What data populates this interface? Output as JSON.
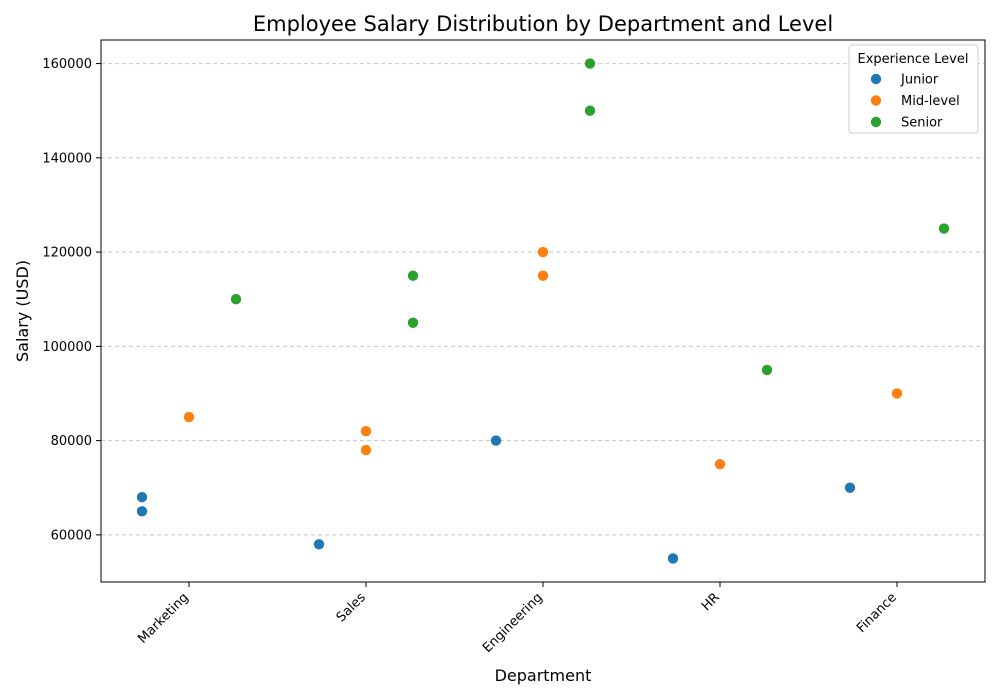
{
  "chart_data": {
    "type": "scatter",
    "title": "Employee Salary Distribution by Department and Level",
    "xlabel": "Department",
    "ylabel": "Salary (USD)",
    "categories": [
      "Marketing",
      "Sales",
      "Engineering",
      "HR",
      "Finance"
    ],
    "ylim": [
      50000,
      165000
    ],
    "yticks": [
      60000,
      80000,
      100000,
      120000,
      140000,
      160000
    ],
    "grid": "y-dashed",
    "legend": {
      "title": "Experience Level",
      "placement": "top-right"
    },
    "series": [
      {
        "name": "Junior",
        "color": "#1f77b4",
        "points": [
          {
            "category": "Marketing",
            "value": 68000
          },
          {
            "category": "Marketing",
            "value": 65000
          },
          {
            "category": "Sales",
            "value": 58000
          },
          {
            "category": "Engineering",
            "value": 80000
          },
          {
            "category": "HR",
            "value": 55000
          },
          {
            "category": "Finance",
            "value": 70000
          }
        ]
      },
      {
        "name": "Mid-level",
        "color": "#ff7f0e",
        "points": [
          {
            "category": "Marketing",
            "value": 85000
          },
          {
            "category": "Sales",
            "value": 82000
          },
          {
            "category": "Sales",
            "value": 78000
          },
          {
            "category": "Engineering",
            "value": 120000
          },
          {
            "category": "Engineering",
            "value": 115000
          },
          {
            "category": "HR",
            "value": 75000
          },
          {
            "category": "Finance",
            "value": 90000
          }
        ]
      },
      {
        "name": "Senior",
        "color": "#2ca02c",
        "points": [
          {
            "category": "Marketing",
            "value": 110000
          },
          {
            "category": "Sales",
            "value": 115000
          },
          {
            "category": "Sales",
            "value": 105000
          },
          {
            "category": "Engineering",
            "value": 160000
          },
          {
            "category": "Engineering",
            "value": 150000
          },
          {
            "category": "HR",
            "value": 95000
          },
          {
            "category": "Finance",
            "value": 125000
          }
        ]
      }
    ]
  }
}
